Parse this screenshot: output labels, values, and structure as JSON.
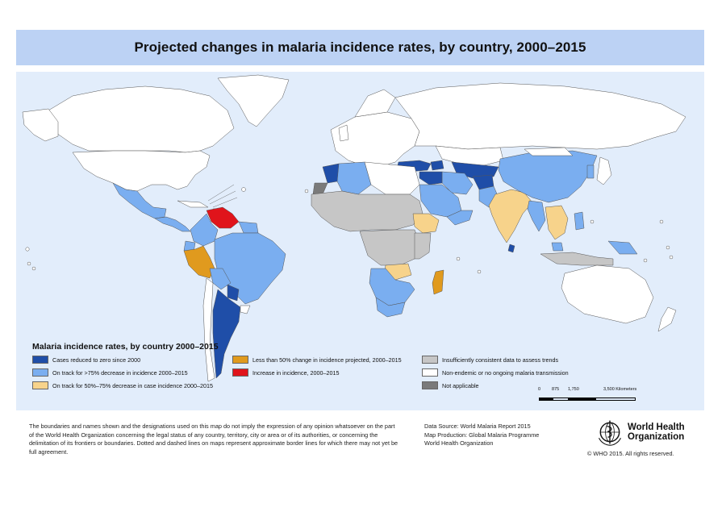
{
  "title": "Projected changes in malaria incidence rates, by country, 2000–2015",
  "legend": {
    "title": "Malaria incidence rates, by country 2000–2015",
    "items": [
      {
        "label": "Cases reduced to zero since 2000",
        "color": "#1f4ea8"
      },
      {
        "label": "On track for >75% decrease in incidence 2000–2015",
        "color": "#7aaef0"
      },
      {
        "label": "On track for 50%–75% decrease in case incidence 2000–2015",
        "color": "#f7d38b"
      },
      {
        "label": "Less than 50% change in incidence projected, 2000–2015",
        "color": "#e09a1e"
      },
      {
        "label": "Increase in incidence, 2000–2015",
        "color": "#e0141b"
      },
      {
        "label": "Insufficiently consistent data to assess trends",
        "color": "#c6c6c6"
      },
      {
        "label": "Non-endemic or no ongoing malaria transmission",
        "color": "#ffffff"
      },
      {
        "label": "Not applicable",
        "color": "#7a7a7a"
      }
    ]
  },
  "scale": {
    "ticks": [
      "0",
      "875",
      "1,750",
      "3,500 Kilometers"
    ]
  },
  "footer": {
    "disclaimer": "The boundaries and names shown and the designations used on this map do not imply the expression of any opinion whatsoever on the part of the World Health Organization concerning the legal status of any country, territory, city or area or of its authorities, or concerning the delimitation of its frontiers or boundaries. Dotted and dashed lines on maps represent approximate border lines for which there may not yet be full agreement.",
    "source_lines": [
      "Data Source: World Malaria Report 2015",
      "Map Production: Global Malaria Programme",
      "World Health Organization"
    ],
    "org_name_line1": "World Health",
    "org_name_line2": "Organization",
    "copyright": "© WHO 2015. All rights reserved."
  },
  "colors": {
    "title_band": "#bcd2f4",
    "ocean": "#e2edfb",
    "border": "#555555"
  }
}
